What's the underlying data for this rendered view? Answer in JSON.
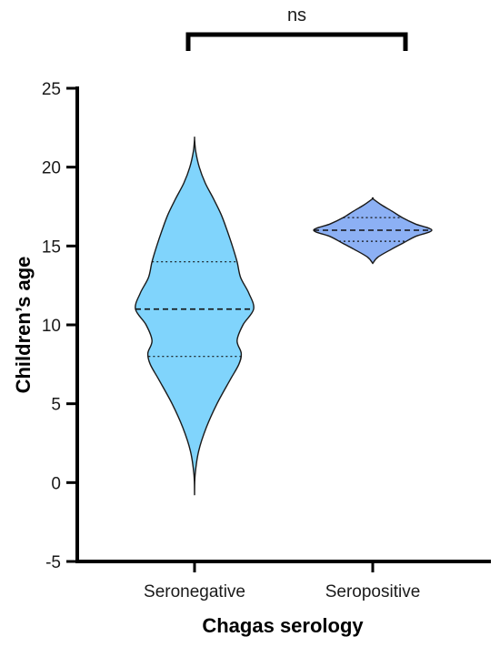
{
  "chart_data": {
    "type": "violin",
    "xlabel": "Chagas serology",
    "ylabel": "Children’s age",
    "ylim": [
      -5,
      25
    ],
    "yticks": [
      -5,
      0,
      5,
      10,
      15,
      20,
      25
    ],
    "categories": [
      "Seronegative",
      "Seropositive"
    ],
    "series": [
      {
        "category": "Seronegative",
        "color": "#80d4fc",
        "min": -0.8,
        "max": 21.8,
        "median": 11,
        "q1": 8,
        "q3": 14,
        "density": [
          [
            -0.8,
            0.0
          ],
          [
            0.5,
            0.01
          ],
          [
            2.0,
            0.07
          ],
          [
            3.5,
            0.2
          ],
          [
            5.0,
            0.38
          ],
          [
            6.5,
            0.6
          ],
          [
            7.5,
            0.75
          ],
          [
            8.2,
            0.79
          ],
          [
            9.0,
            0.72
          ],
          [
            10.0,
            0.82
          ],
          [
            11.0,
            1.0
          ],
          [
            12.0,
            0.92
          ],
          [
            13.0,
            0.78
          ],
          [
            14.0,
            0.72
          ],
          [
            15.0,
            0.64
          ],
          [
            16.0,
            0.55
          ],
          [
            17.0,
            0.45
          ],
          [
            18.0,
            0.32
          ],
          [
            19.0,
            0.18
          ],
          [
            20.0,
            0.08
          ],
          [
            21.0,
            0.02
          ],
          [
            21.8,
            0.0
          ]
        ]
      },
      {
        "category": "Seropositive",
        "color": "#8cb0f4",
        "min": 13.9,
        "max": 18.0,
        "median": 16,
        "q1": 15.3,
        "q3": 16.8,
        "density": [
          [
            13.9,
            0.0
          ],
          [
            14.3,
            0.09
          ],
          [
            14.8,
            0.32
          ],
          [
            15.2,
            0.52
          ],
          [
            15.6,
            0.72
          ],
          [
            16.0,
            1.0
          ],
          [
            16.4,
            0.72
          ],
          [
            16.8,
            0.5
          ],
          [
            17.2,
            0.33
          ],
          [
            17.6,
            0.15
          ],
          [
            18.0,
            0.0
          ]
        ]
      }
    ],
    "significance": {
      "label": "ns",
      "between": [
        "Seronegative",
        "Seropositive"
      ]
    }
  }
}
